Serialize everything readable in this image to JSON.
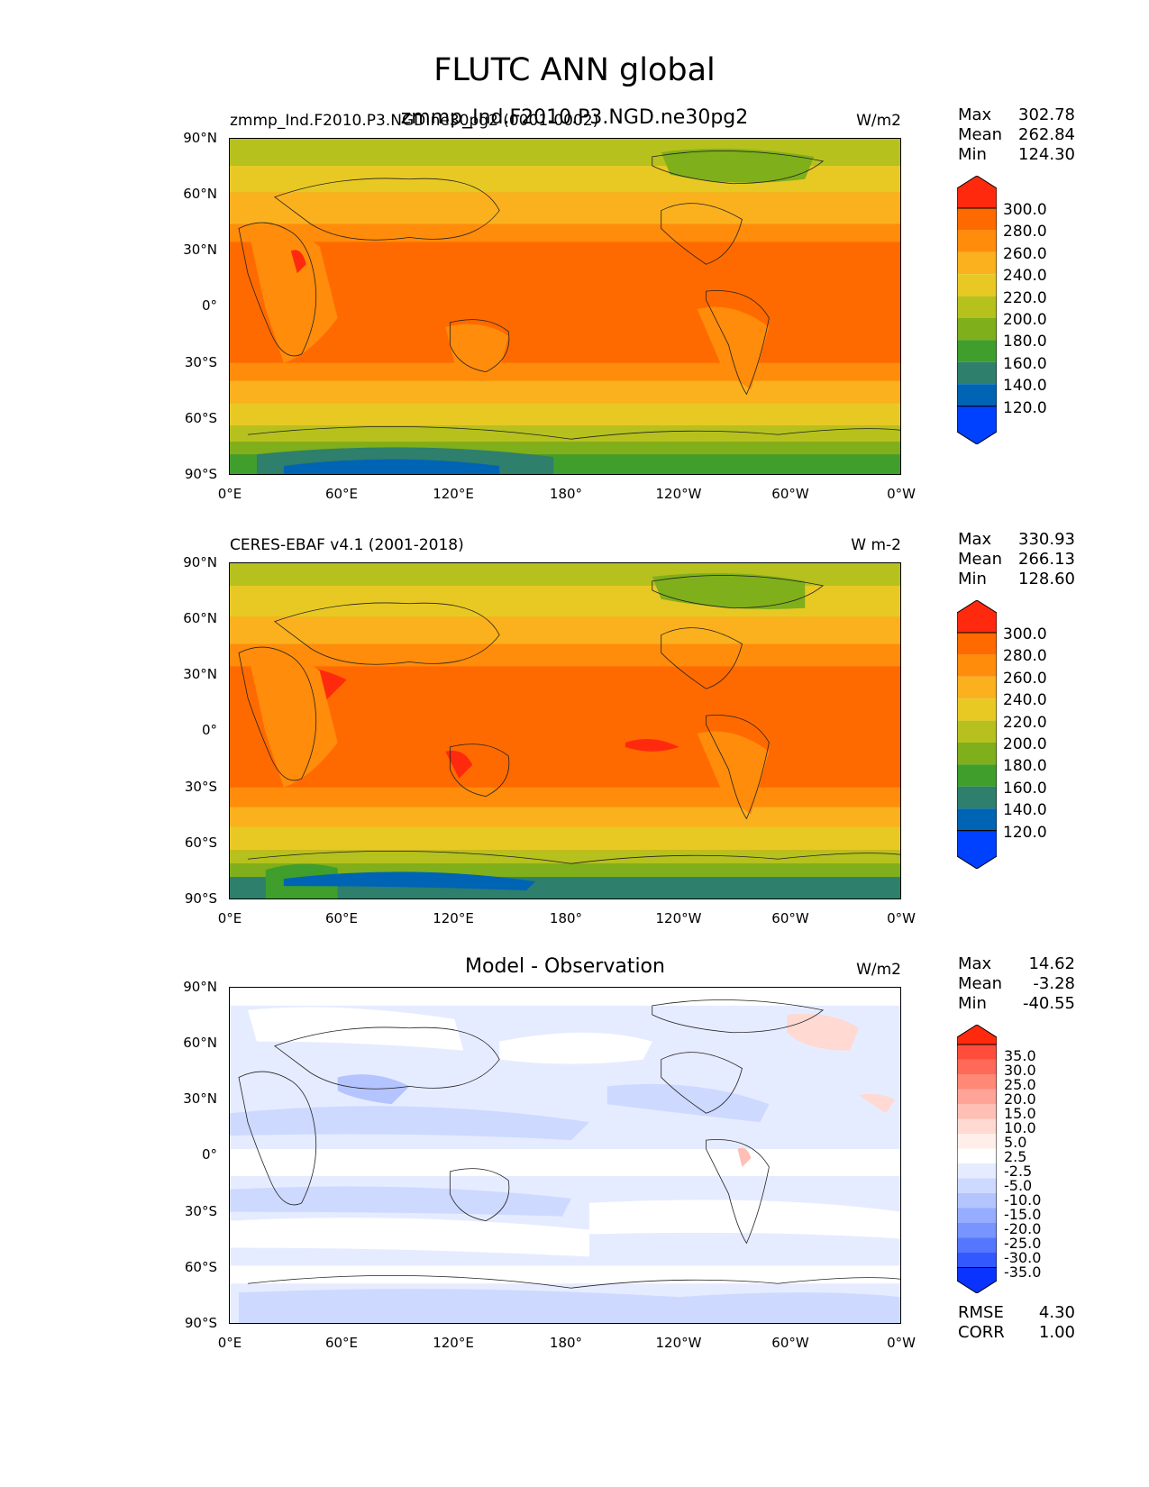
{
  "title": "FLUTC ANN global",
  "panels": [
    {
      "title_left": "zmmp_Ind.F2010.P3.NGD.ne30pg2 (0001-0002)",
      "title_center": "zmmp_Ind.F2010.P3.NGD.ne30pg2",
      "units": "W/m2",
      "stats": {
        "max_label": "Max",
        "max": "302.78",
        "mean_label": "Mean",
        "mean": "262.84",
        "min_label": "Min",
        "min": "124.30"
      },
      "colorbar": {
        "labels": [
          "300.0",
          "280.0",
          "260.0",
          "240.0",
          "220.0",
          "200.0",
          "180.0",
          "160.0",
          "140.0",
          "120.0"
        ],
        "colors": [
          "#ff2a0e",
          "#ff6a00",
          "#ff8c0a",
          "#fbb11e",
          "#e8c924",
          "#b6c11e",
          "#7faf1a",
          "#3f9e2c",
          "#2e7f6b",
          "#0064b4",
          "#0040ff"
        ]
      }
    },
    {
      "title_left": "CERES-EBAF v4.1 (2001-2018)",
      "title_center": "",
      "units": "W m-2",
      "stats": {
        "max_label": "Max",
        "max": "330.93",
        "mean_label": "Mean",
        "mean": "266.13",
        "min_label": "Min",
        "min": "128.60"
      },
      "colorbar": {
        "labels": [
          "300.0",
          "280.0",
          "260.0",
          "240.0",
          "220.0",
          "200.0",
          "180.0",
          "160.0",
          "140.0",
          "120.0"
        ],
        "colors": [
          "#ff2a0e",
          "#ff6a00",
          "#ff8c0a",
          "#fbb11e",
          "#e8c924",
          "#b6c11e",
          "#7faf1a",
          "#3f9e2c",
          "#2e7f6b",
          "#0064b4",
          "#0040ff"
        ]
      }
    },
    {
      "title_left": "",
      "title_center": "Model - Observation",
      "units": "W/m2",
      "stats": {
        "max_label": "Max",
        "max": "14.62",
        "mean_label": "Mean",
        "mean": "-3.28",
        "min_label": "Min",
        "min": "-40.55"
      },
      "rmse_label": "RMSE",
      "rmse": "4.30",
      "corr_label": "CORR",
      "corr": "1.00",
      "colorbar": {
        "labels": [
          "35.0",
          "30.0",
          "25.0",
          "20.0",
          "15.0",
          "10.0",
          "5.0",
          "2.5",
          "-2.5",
          "-5.0",
          "-10.0",
          "-15.0",
          "-20.0",
          "-25.0",
          "-30.0",
          "-35.0"
        ],
        "colors": [
          "#ff2a0e",
          "#ff4d3c",
          "#ff6a58",
          "#ff8877",
          "#ffa496",
          "#ffbfb4",
          "#ffd9d2",
          "#ffeeea",
          "#ffffff",
          "#e6ecff",
          "#cdd9ff",
          "#b3c4ff",
          "#96adff",
          "#7794ff",
          "#5577ff",
          "#3358ff",
          "#0a33ff"
        ]
      }
    }
  ],
  "lat_labels": [
    "90°N",
    "60°N",
    "30°N",
    "0°",
    "30°S",
    "60°S",
    "90°S"
  ],
  "lon_labels": [
    "0°E",
    "60°E",
    "120°E",
    "180°",
    "120°W",
    "60°W",
    "0°W"
  ]
}
